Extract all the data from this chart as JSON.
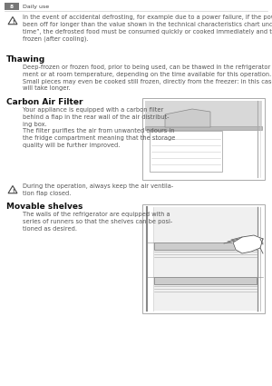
{
  "page_bg": "#ffffff",
  "header_bar_color": "#777777",
  "header_text": "8",
  "header_label": "Daily use",
  "body_text_color": "#555555",
  "heading_color": "#111111",
  "heading1": "Thawing",
  "heading2": "Carbon Air Filter",
  "heading3": "Movable shelves",
  "warning_text1": "In the event of accidental defrosting, for example due to a power failure, if the power has\nbeen off for longer than the value shown in the technical characteristics chart under “rising\ntime”, the defrosted food must be consumed quickly or cooked immediately and then re-\nfrozen (after cooling).",
  "thawing_text": "Deep-frozen or frozen food, prior to being used, can be thawed in the refrigerator compart-\nment or at room temperature, depending on the time available for this operation.\nSmall pieces may even be cooked still frozen, directly from the freezer: in this case, cooking\nwill take longer.",
  "carbon_text": "Your appliance is equipped with a carbon filter\nbehind a flap in the rear wall of the air distribut-\ning box.\nThe filter purifies the air from unwanted odours in\nthe fridge compartment meaning that the storage\nquality will be further improved.",
  "warning_text2": "During the operation, always keep the air ventila-\ntion flap closed.",
  "movable_text": "The walls of the refrigerator are equipped with a\nseries of runners so that the shelves can be posi-\ntioned as desired.",
  "font_size_heading": 6.5,
  "font_size_body": 4.8,
  "font_size_header": 5.0
}
